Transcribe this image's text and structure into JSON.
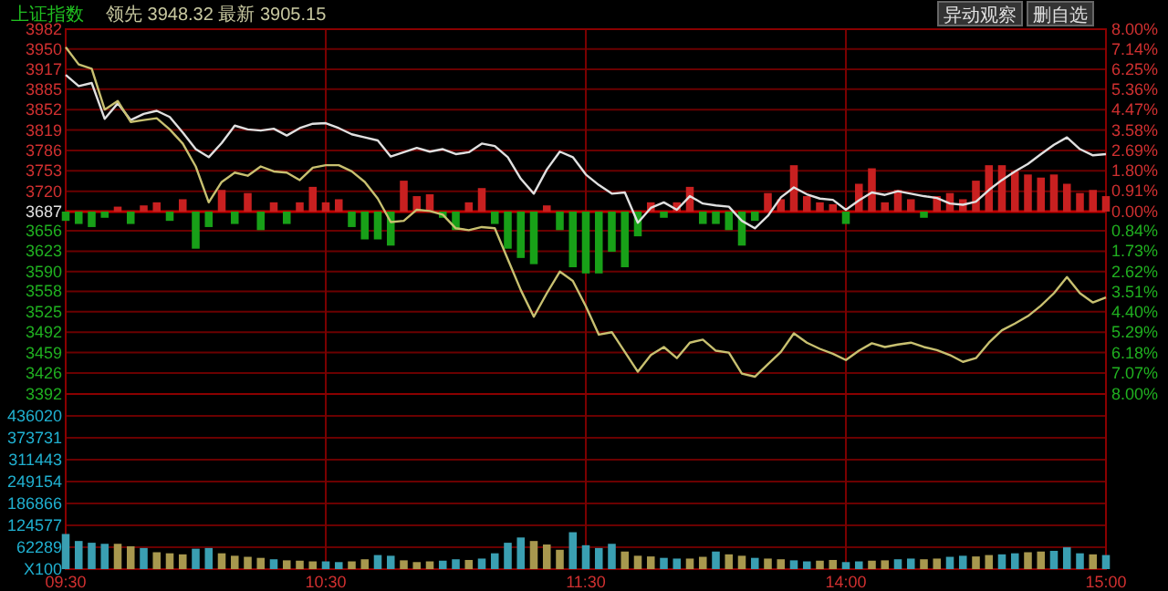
{
  "chart_data": [
    {
      "type": "line",
      "title": "上证指数",
      "subtitle": "领先 3948.32  最新 3905.15",
      "annotations": [
        "异动观察",
        "删自选"
      ],
      "categories": [
        null,
        null,
        null,
        null,
        null,
        null,
        null,
        null,
        null,
        null,
        null,
        null,
        null,
        null,
        null,
        null,
        null,
        null,
        null,
        null,
        null,
        null,
        null,
        null,
        null,
        null,
        null,
        null,
        null,
        null,
        null,
        null,
        null,
        null,
        null,
        null,
        null,
        null,
        null,
        null,
        null,
        null,
        null,
        null,
        null,
        null,
        null,
        null,
        null,
        null,
        null,
        null,
        null,
        null,
        null,
        null,
        null,
        null,
        null,
        null,
        null,
        null,
        null,
        null,
        null,
        null,
        null,
        null,
        null,
        null,
        null,
        null,
        null,
        null,
        null,
        null,
        null,
        null,
        null,
        null,
        null
      ],
      "ylim": [
        3392,
        3982
      ],
      "yticks": [
        3982,
        3950,
        3917,
        3885,
        3852,
        3819,
        3786,
        3753,
        3720,
        3687,
        3656,
        3623,
        3590,
        3558,
        3525,
        3492,
        3459,
        3426,
        3392
      ],
      "y2lim": [
        -8,
        8
      ],
      "y2ticks": [
        {
          "value": 8,
          "label": "8.00%"
        },
        {
          "value": 7.14,
          "label": "7.14%"
        },
        {
          "value": 6.25,
          "label": "6.25%"
        },
        {
          "value": 5.36,
          "label": "5.36%"
        },
        {
          "value": 4.47,
          "label": "4.47%"
        },
        {
          "value": 3.58,
          "label": "3.58%"
        },
        {
          "value": 2.69,
          "label": "2.69%"
        },
        {
          "value": 1.8,
          "label": "1.80%"
        },
        {
          "value": 0.91,
          "label": "0.91%"
        },
        {
          "value": 0,
          "label": "0.00%"
        },
        {
          "value": -0.84,
          "label": "0.84%"
        },
        {
          "value": -1.73,
          "label": "1.73%"
        },
        {
          "value": -2.62,
          "label": "2.62%"
        },
        {
          "value": -3.51,
          "label": "3.51%"
        },
        {
          "value": -4.4,
          "label": "4.40%"
        },
        {
          "value": -5.29,
          "label": "5.29%"
        },
        {
          "value": -6.18,
          "label": "6.18%"
        },
        {
          "value": -7.07,
          "label": "7.07%"
        },
        {
          "value": -8,
          "label": "8.00%"
        }
      ],
      "tick_labels": "y",
      "grid": true,
      "ref_lines": [
        {
          "axis": "y",
          "value": 3687,
          "color": "#c00000"
        }
      ],
      "series": [
        {
          "type": "bar",
          "base": [
            3687,
            3687,
            3687,
            3687,
            3687,
            3687,
            3687,
            3687,
            3687,
            3687,
            3687,
            3687,
            3687,
            3687,
            3687,
            3687,
            3687,
            3687,
            3687,
            3687,
            3687,
            3687,
            3687,
            3687,
            3687,
            3687,
            3687,
            3687,
            3687,
            3687,
            3687,
            3687,
            3687,
            3687,
            3687,
            3687,
            3687,
            3687,
            3687,
            3687,
            3687,
            3687,
            3687,
            3687,
            3687,
            3687,
            3687,
            3687,
            3687,
            3687,
            3687,
            3687,
            3687,
            3687,
            3687,
            3687,
            3687,
            3687,
            3687,
            3687,
            3687,
            3687,
            3687,
            3687,
            3687,
            3687,
            3687,
            3687,
            3687,
            3687,
            3687,
            3687,
            3687,
            3687,
            3687,
            3687,
            3687,
            3687,
            3687,
            3687,
            3687
          ],
          "values": [
            -15,
            -20,
            -25,
            -10,
            8,
            -20,
            10,
            15,
            -15,
            20,
            -60,
            -25,
            35,
            -20,
            30,
            -30,
            15,
            -20,
            15,
            40,
            15,
            20,
            -25,
            -45,
            -45,
            -55,
            50,
            25,
            28,
            -10,
            -30,
            15,
            38,
            -20,
            -60,
            -75,
            -85,
            10,
            -30,
            -90,
            -100,
            -100,
            -65,
            -90,
            -40,
            15,
            -10,
            15,
            40,
            -20,
            -20,
            -30,
            -55,
            -15,
            30,
            20,
            75,
            25,
            15,
            12,
            -20,
            45,
            70,
            15,
            35,
            20,
            -10,
            25,
            30,
            20,
            50,
            75,
            75,
            65,
            60,
            55,
            60,
            45,
            30,
            35,
            25
          ],
          "colors": [
            "#18a018",
            "#18a018",
            "#18a018",
            "#18a018",
            "#c82020",
            "#18a018",
            "#c82020",
            "#c82020",
            "#18a018",
            "#c82020",
            "#18a018",
            "#18a018",
            "#c82020",
            "#18a018",
            "#c82020",
            "#18a018",
            "#c82020",
            "#18a018",
            "#c82020",
            "#c82020",
            "#c82020",
            "#c82020",
            "#18a018",
            "#18a018",
            "#18a018",
            "#18a018",
            "#c82020",
            "#c82020",
            "#c82020",
            "#18a018",
            "#18a018",
            "#c82020",
            "#c82020",
            "#18a018",
            "#18a018",
            "#18a018",
            "#18a018",
            "#c82020",
            "#18a018",
            "#18a018",
            "#18a018",
            "#18a018",
            "#18a018",
            "#18a018",
            "#18a018",
            "#c82020",
            "#18a018",
            "#c82020",
            "#c82020",
            "#18a018",
            "#18a018",
            "#18a018",
            "#18a018",
            "#18a018",
            "#c82020",
            "#c82020",
            "#c82020",
            "#c82020",
            "#c82020",
            "#c82020",
            "#18a018",
            "#c82020",
            "#c82020",
            "#c82020",
            "#c82020",
            "#c82020",
            "#18a018",
            "#c82020",
            "#c82020",
            "#c82020",
            "#c82020",
            "#c82020",
            "#c82020",
            "#c82020",
            "#c82020",
            "#c82020",
            "#c82020",
            "#c82020",
            "#c82020",
            "#c82020",
            "#c82020"
          ]
        },
        {
          "color": "#e0e0e0",
          "values": [
            3908,
            3890,
            3895,
            3837,
            3862,
            3835,
            3845,
            3850,
            3840,
            3815,
            3788,
            3775,
            3798,
            3826,
            3820,
            3818,
            3821,
            3810,
            3822,
            3829,
            3830,
            3822,
            3812,
            3807,
            3802,
            3776,
            3783,
            3790,
            3784,
            3788,
            3780,
            3783,
            3797,
            3793,
            3775,
            3740,
            3716,
            3755,
            3784,
            3775,
            3747,
            3730,
            3716,
            3718,
            3669,
            3693,
            3702,
            3690,
            3712,
            3700,
            3697,
            3695,
            3672,
            3660,
            3680,
            3710,
            3726,
            3715,
            3708,
            3706,
            3690,
            3705,
            3718,
            3714,
            3720,
            3716,
            3712,
            3709,
            3700,
            3698,
            3703,
            3722,
            3738,
            3752,
            3764,
            3780,
            3795,
            3807,
            3788,
            3778,
            3780
          ]
        },
        {
          "color": "#c8c070",
          "values": [
            3953,
            3925,
            3918,
            3852,
            3866,
            3832,
            3835,
            3838,
            3820,
            3797,
            3760,
            3702,
            3735,
            3750,
            3745,
            3760,
            3752,
            3750,
            3738,
            3758,
            3762,
            3762,
            3752,
            3735,
            3708,
            3670,
            3672,
            3690,
            3688,
            3682,
            3660,
            3657,
            3662,
            3660,
            3610,
            3560,
            3517,
            3555,
            3590,
            3575,
            3534,
            3488,
            3492,
            3460,
            3428,
            3455,
            3468,
            3450,
            3475,
            3480,
            3462,
            3459,
            3425,
            3420,
            3440,
            3460,
            3490,
            3475,
            3465,
            3457,
            3447,
            3462,
            3474,
            3468,
            3472,
            3475,
            3468,
            3463,
            3455,
            3444,
            3450,
            3475,
            3495,
            3506,
            3518,
            3535,
            3555,
            3581,
            3555,
            3540,
            3548
          ]
        }
      ]
    },
    {
      "type": "bar",
      "categories": [
        "09:30",
        null,
        null,
        null,
        null,
        null,
        null,
        null,
        null,
        null,
        null,
        null,
        null,
        null,
        null,
        null,
        null,
        null,
        null,
        null,
        "10:30",
        null,
        null,
        null,
        null,
        null,
        null,
        null,
        null,
        null,
        null,
        null,
        null,
        null,
        null,
        null,
        null,
        null,
        null,
        null,
        "11:30",
        null,
        null,
        null,
        null,
        null,
        null,
        null,
        null,
        null,
        null,
        null,
        null,
        null,
        null,
        null,
        null,
        null,
        null,
        null,
        "14:00",
        null,
        null,
        null,
        null,
        null,
        null,
        null,
        null,
        null,
        null,
        null,
        null,
        null,
        null,
        null,
        null,
        null,
        null,
        null,
        "15:00"
      ],
      "ylim": [
        0,
        498310
      ],
      "yticks": [
        {
          "value": 0,
          "label": "X100"
        },
        62289,
        124577,
        186866,
        249154,
        311443,
        373731,
        436020
      ],
      "grid": true,
      "values": [
        100000,
        80000,
        75000,
        72000,
        72000,
        65000,
        60000,
        48000,
        45000,
        42000,
        58000,
        60000,
        45000,
        38000,
        35000,
        32000,
        28000,
        25000,
        24000,
        22000,
        22000,
        20000,
        22000,
        28000,
        40000,
        38000,
        25000,
        20000,
        22000,
        24000,
        28000,
        26000,
        30000,
        45000,
        75000,
        90000,
        80000,
        70000,
        55000,
        105000,
        68000,
        60000,
        72000,
        50000,
        38000,
        36000,
        32000,
        30000,
        30000,
        35000,
        50000,
        42000,
        38000,
        32000,
        30000,
        28000,
        25000,
        22000,
        24000,
        26000,
        20000,
        22000,
        24000,
        25000,
        28000,
        30000,
        28000,
        30000,
        35000,
        38000,
        36000,
        40000,
        42000,
        45000,
        48000,
        50000,
        52000,
        62000,
        45000,
        42000,
        40000
      ],
      "colors": [
        "#3a9fb2",
        "#3a9fb2",
        "#3a9fb2",
        "#3a9fb2",
        "#a8984e",
        "#a8984e",
        "#3a9fb2",
        "#a8984e",
        "#a8984e",
        "#a8984e",
        "#3a9fb2",
        "#3a9fb2",
        "#a8984e",
        "#a8984e",
        "#a8984e",
        "#a8984e",
        "#3a9fb2",
        "#a8984e",
        "#a8984e",
        "#a8984e",
        "#3a9fb2",
        "#3a9fb2",
        "#a8984e",
        "#a8984e",
        "#3a9fb2",
        "#3a9fb2",
        "#a8984e",
        "#a8984e",
        "#a8984e",
        "#3a9fb2",
        "#3a9fb2",
        "#a8984e",
        "#3a9fb2",
        "#3a9fb2",
        "#3a9fb2",
        "#3a9fb2",
        "#a8984e",
        "#a8984e",
        "#a8984e",
        "#3a9fb2",
        "#3a9fb2",
        "#3a9fb2",
        "#3a9fb2",
        "#a8984e",
        "#a8984e",
        "#a8984e",
        "#3a9fb2",
        "#3a9fb2",
        "#a8984e",
        "#a8984e",
        "#3a9fb2",
        "#a8984e",
        "#a8984e",
        "#3a9fb2",
        "#a8984e",
        "#a8984e",
        "#3a9fb2",
        "#3a9fb2",
        "#a8984e",
        "#a8984e",
        "#3a9fb2",
        "#3a9fb2",
        "#a8984e",
        "#a8984e",
        "#3a9fb2",
        "#3a9fb2",
        "#a8984e",
        "#a8984e",
        "#3a9fb2",
        "#3a9fb2",
        "#a8984e",
        "#a8984e",
        "#3a9fb2",
        "#3a9fb2",
        "#a8984e",
        "#a8984e",
        "#3a9fb2",
        "#3a9fb2",
        "#3a9fb2",
        "#a8984e",
        "#3a9fb2"
      ]
    }
  ]
}
